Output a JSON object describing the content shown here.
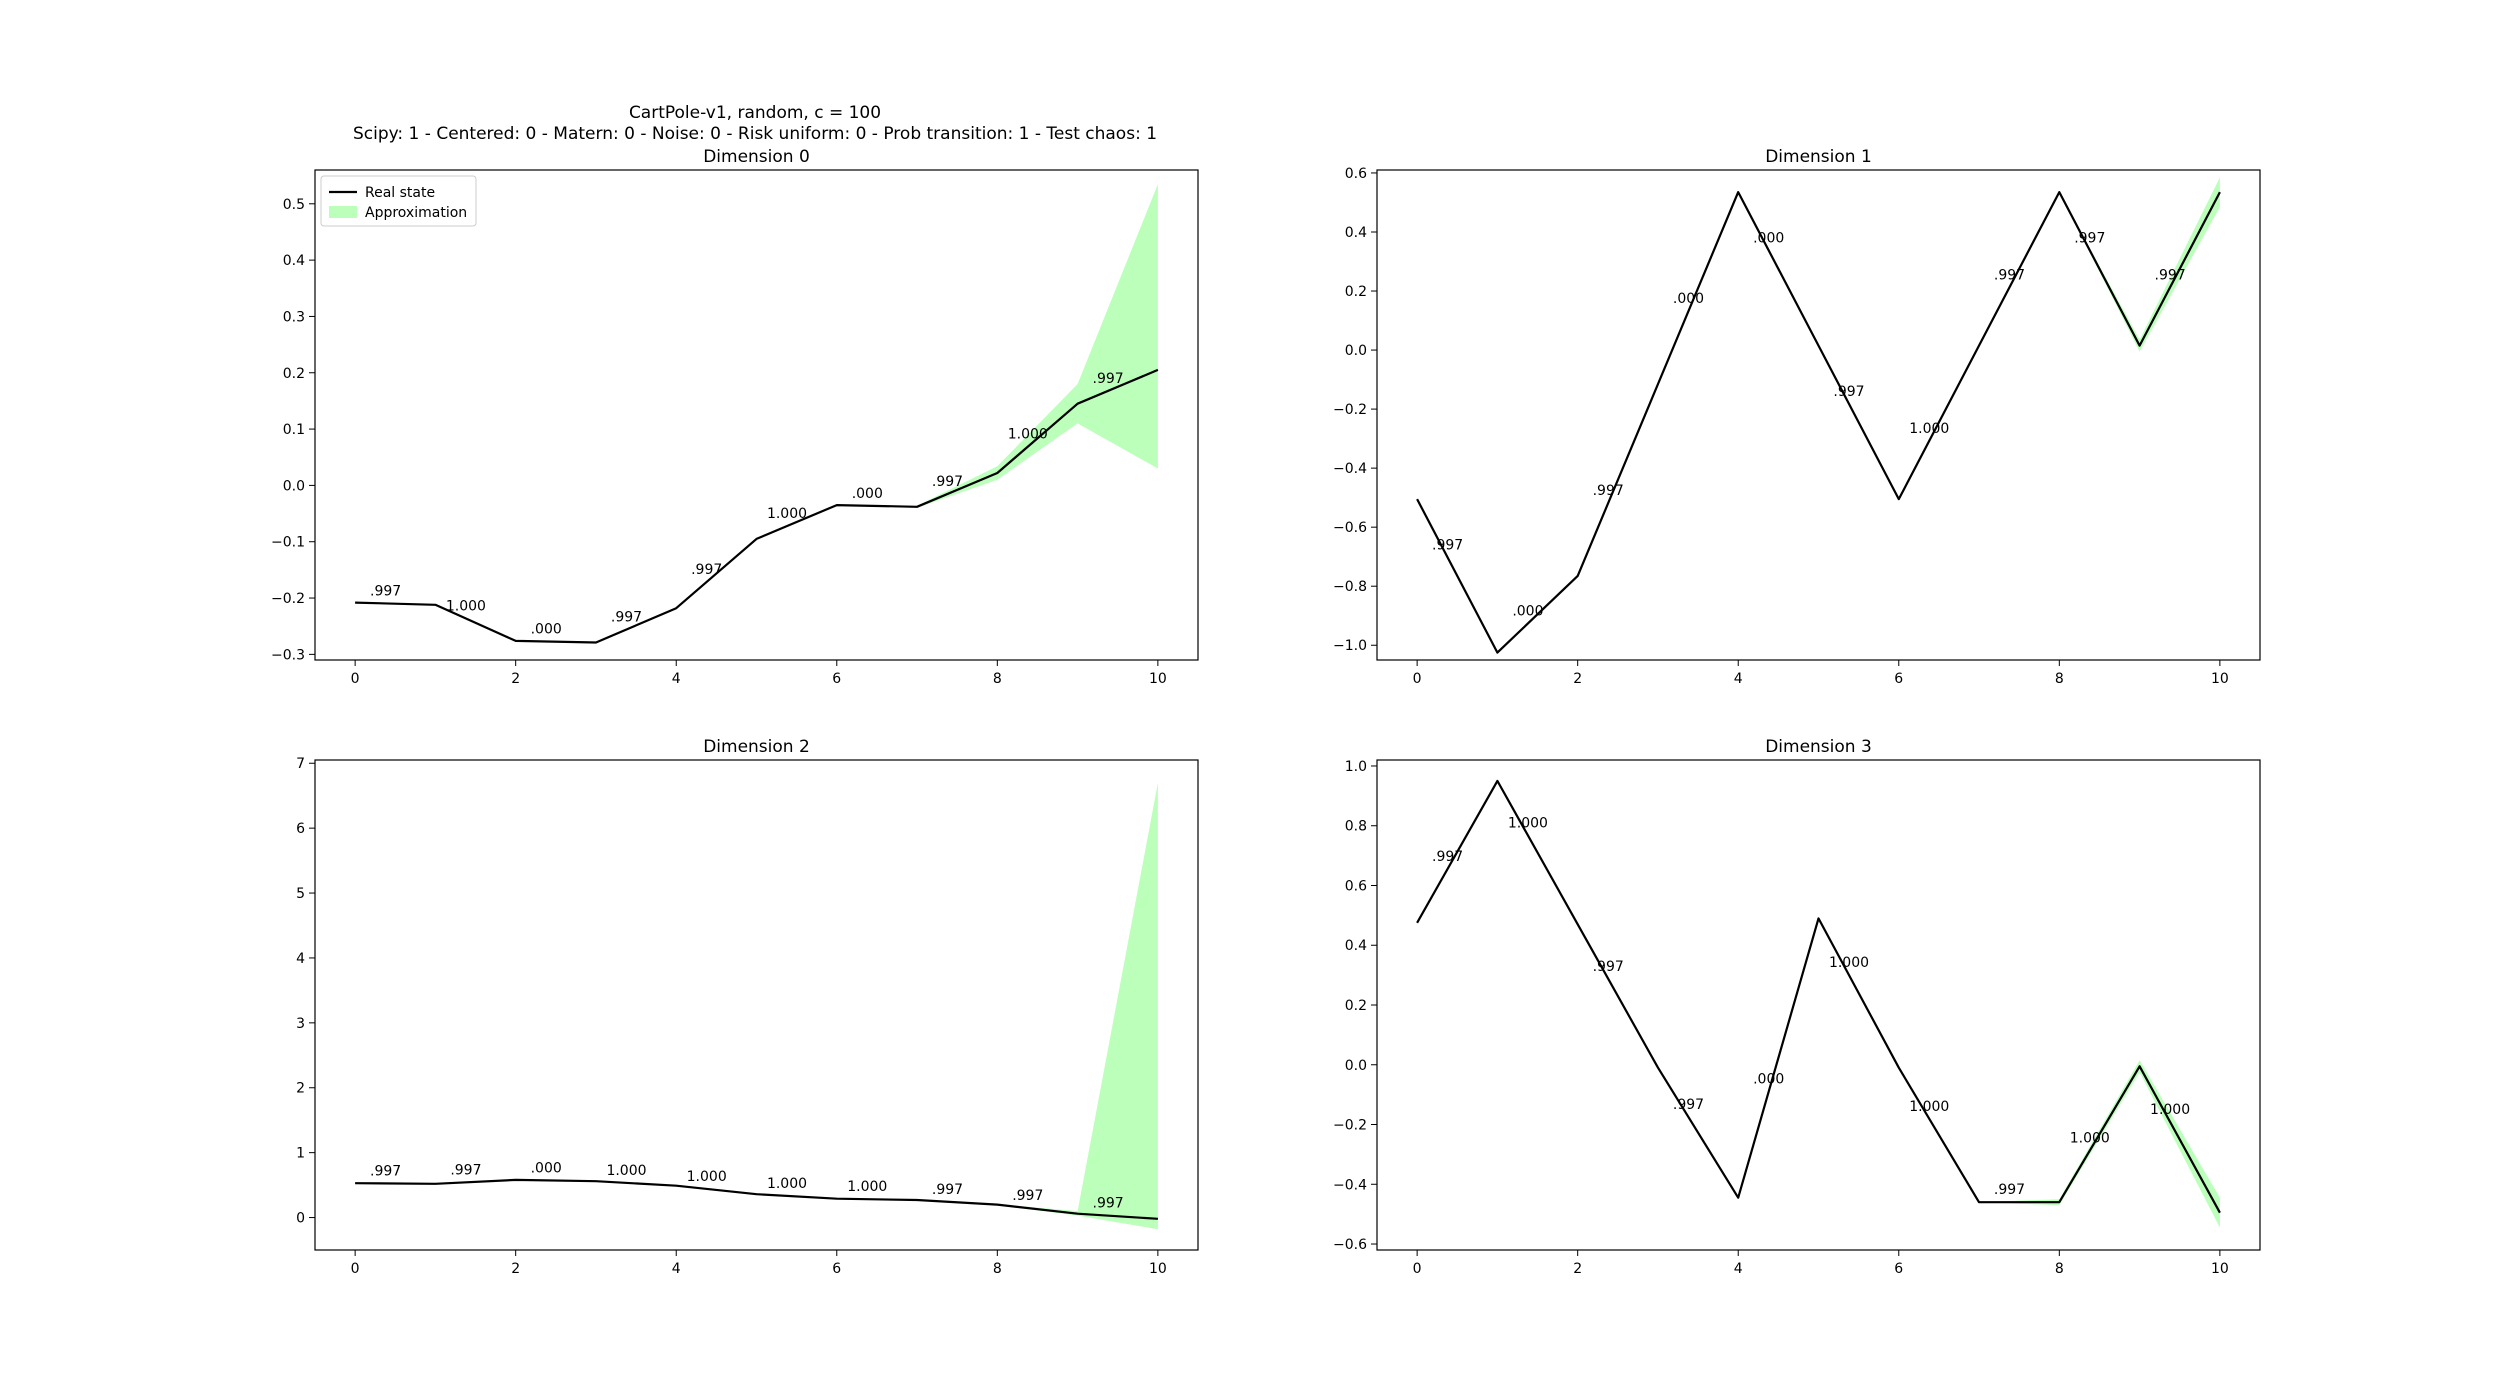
{
  "figure": {
    "suptitle_line1": "CartPole-v1, random, c = 100",
    "suptitle_line2": "Scipy: 1 - Centered: 0 - Matern: 0 - Noise: 0 - Risk uniform: 0 - Prob transition: 1 - Test chaos: 1"
  },
  "colors": {
    "real_line": "#000000",
    "band": "#bbffbb"
  },
  "legend": {
    "placement": "upper-left",
    "panel": 0,
    "items": [
      {
        "label": "Real state",
        "kind": "line"
      },
      {
        "label": "Approximation",
        "kind": "patch"
      }
    ]
  },
  "chart_data": [
    {
      "type": "line",
      "title": "Dimension 0",
      "x": [
        0,
        1,
        2,
        3,
        4,
        5,
        6,
        7,
        8,
        9,
        10
      ],
      "xlim": [
        -0.5,
        10.5
      ],
      "ylim": [
        -0.31,
        0.56
      ],
      "xticks": [
        0,
        2,
        4,
        6,
        8,
        10
      ],
      "xtick_labels": [
        "0",
        "2",
        "4",
        "6",
        "8",
        "10"
      ],
      "yticks": [
        -0.3,
        -0.2,
        -0.1,
        0.0,
        0.1,
        0.2,
        0.3,
        0.4,
        0.5
      ],
      "ytick_labels": [
        "−0.3",
        "−0.2",
        "−0.1",
        "0.0",
        "0.1",
        "0.2",
        "0.3",
        "0.4",
        "0.5"
      ],
      "grid": false,
      "series": [
        {
          "name": "Real state",
          "values": [
            -0.208,
            -0.212,
            -0.276,
            -0.279,
            -0.218,
            -0.095,
            -0.035,
            -0.038,
            0.022,
            0.145,
            0.205
          ]
        },
        {
          "name": "Approximation",
          "lower": [
            -0.208,
            -0.212,
            -0.276,
            -0.279,
            -0.218,
            -0.095,
            -0.035,
            -0.04,
            0.01,
            0.11,
            0.03
          ],
          "upper": [
            -0.208,
            -0.212,
            -0.276,
            -0.279,
            -0.218,
            -0.095,
            -0.035,
            -0.036,
            0.034,
            0.18,
            0.535
          ]
        }
      ],
      "point_labels": [
        {
          "x": 0,
          "text": ".997"
        },
        {
          "x": 1,
          "text": "1.000"
        },
        {
          "x": 2,
          "text": ".000"
        },
        {
          "x": 3,
          "text": ".997"
        },
        {
          "x": 4,
          "text": ".997"
        },
        {
          "x": 5,
          "text": "1.000"
        },
        {
          "x": 6,
          "text": ".000"
        },
        {
          "x": 7,
          "text": ".997"
        },
        {
          "x": 8,
          "text": "1.000"
        },
        {
          "x": 9,
          "text": ".997"
        }
      ]
    },
    {
      "type": "line",
      "title": "Dimension 1",
      "x": [
        0,
        1,
        2,
        3,
        4,
        5,
        6,
        7,
        8,
        9,
        10
      ],
      "xlim": [
        -0.5,
        10.5
      ],
      "ylim": [
        -1.05,
        0.61
      ],
      "xticks": [
        0,
        2,
        4,
        6,
        8,
        10
      ],
      "xtick_labels": [
        "0",
        "2",
        "4",
        "6",
        "8",
        "10"
      ],
      "yticks": [
        -1.0,
        -0.8,
        -0.6,
        -0.4,
        -0.2,
        0.0,
        0.2,
        0.4,
        0.6
      ],
      "ytick_labels": [
        "−1.0",
        "−0.8",
        "−0.6",
        "−0.4",
        "−0.2",
        "0.0",
        "0.2",
        "0.4",
        "0.6"
      ],
      "grid": false,
      "series": [
        {
          "name": "Real state",
          "values": [
            -0.505,
            -1.025,
            -0.765,
            -0.115,
            0.535,
            0.015,
            -0.505,
            0.015,
            0.535,
            0.015,
            0.535
          ]
        },
        {
          "name": "Approximation",
          "lower": [
            -0.505,
            -1.025,
            -0.765,
            -0.115,
            0.535,
            0.015,
            -0.505,
            0.015,
            0.535,
            -0.005,
            0.485
          ],
          "upper": [
            -0.505,
            -1.025,
            -0.765,
            -0.115,
            0.535,
            0.015,
            -0.505,
            0.015,
            0.535,
            0.035,
            0.585
          ]
        }
      ],
      "point_labels": [
        {
          "x": 0,
          "text": ".997"
        },
        {
          "x": 1,
          "text": ".000"
        },
        {
          "x": 2,
          "text": ".997"
        },
        {
          "x": 3,
          "text": ".000"
        },
        {
          "x": 4,
          "text": ".000"
        },
        {
          "x": 5,
          "text": ".997"
        },
        {
          "x": 6,
          "text": "1.000"
        },
        {
          "x": 7,
          "text": ".997"
        },
        {
          "x": 8,
          "text": ".997"
        },
        {
          "x": 9,
          "text": ".997"
        }
      ]
    },
    {
      "type": "line",
      "title": "Dimension 2",
      "x": [
        0,
        1,
        2,
        3,
        4,
        5,
        6,
        7,
        8,
        9,
        10
      ],
      "xlim": [
        -0.5,
        10.5
      ],
      "ylim": [
        -0.5,
        7.05
      ],
      "xticks": [
        0,
        2,
        4,
        6,
        8,
        10
      ],
      "xtick_labels": [
        "0",
        "2",
        "4",
        "6",
        "8",
        "10"
      ],
      "yticks": [
        0,
        1,
        2,
        3,
        4,
        5,
        6,
        7
      ],
      "ytick_labels": [
        "0",
        "1",
        "2",
        "3",
        "4",
        "5",
        "6",
        "7"
      ],
      "grid": false,
      "series": [
        {
          "name": "Real state",
          "values": [
            0.53,
            0.52,
            0.58,
            0.56,
            0.49,
            0.36,
            0.29,
            0.27,
            0.2,
            0.06,
            -0.02
          ]
        },
        {
          "name": "Approximation",
          "lower": [
            0.53,
            0.52,
            0.58,
            0.56,
            0.49,
            0.36,
            0.29,
            0.27,
            0.19,
            0.03,
            -0.18
          ],
          "upper": [
            0.53,
            0.52,
            0.58,
            0.56,
            0.49,
            0.36,
            0.29,
            0.27,
            0.21,
            0.1,
            6.7
          ]
        }
      ],
      "point_labels": [
        {
          "x": 0,
          "text": ".997"
        },
        {
          "x": 1,
          "text": ".997"
        },
        {
          "x": 2,
          "text": ".000"
        },
        {
          "x": 3,
          "text": "1.000"
        },
        {
          "x": 4,
          "text": "1.000"
        },
        {
          "x": 5,
          "text": "1.000"
        },
        {
          "x": 6,
          "text": "1.000"
        },
        {
          "x": 7,
          "text": ".997"
        },
        {
          "x": 8,
          "text": ".997"
        },
        {
          "x": 9,
          "text": ".997"
        }
      ]
    },
    {
      "type": "line",
      "title": "Dimension 3",
      "x": [
        0,
        1,
        2,
        3,
        4,
        5,
        6,
        7,
        8,
        9,
        10
      ],
      "xlim": [
        -0.5,
        10.5
      ],
      "ylim": [
        -0.62,
        1.02
      ],
      "xticks": [
        0,
        2,
        4,
        6,
        8,
        10
      ],
      "xtick_labels": [
        "0",
        "2",
        "4",
        "6",
        "8",
        "10"
      ],
      "yticks": [
        -0.6,
        -0.4,
        -0.2,
        0.0,
        0.2,
        0.4,
        0.6,
        0.8,
        1.0
      ],
      "ytick_labels": [
        "−0.6",
        "−0.4",
        "−0.2",
        "0.0",
        "0.2",
        "0.4",
        "0.6",
        "0.8",
        "1.0"
      ],
      "grid": false,
      "series": [
        {
          "name": "Real state",
          "values": [
            0.475,
            0.95,
            0.47,
            -0.01,
            -0.445,
            0.49,
            -0.01,
            -0.46,
            -0.46,
            -0.005,
            -0.495
          ]
        },
        {
          "name": "Approximation",
          "lower": [
            0.475,
            0.95,
            0.47,
            -0.01,
            -0.445,
            0.49,
            -0.01,
            -0.46,
            -0.47,
            -0.025,
            -0.545
          ],
          "upper": [
            0.475,
            0.95,
            0.47,
            -0.01,
            -0.445,
            0.49,
            -0.01,
            -0.46,
            -0.45,
            0.015,
            -0.445
          ]
        }
      ],
      "point_labels": [
        {
          "x": 0,
          "text": ".997"
        },
        {
          "x": 1,
          "text": "1.000"
        },
        {
          "x": 2,
          "text": ".997"
        },
        {
          "x": 3,
          "text": ".997"
        },
        {
          "x": 4,
          "text": ".000"
        },
        {
          "x": 5,
          "text": "1.000"
        },
        {
          "x": 6,
          "text": "1.000"
        },
        {
          "x": 7,
          "text": ".997"
        },
        {
          "x": 8,
          "text": "1.000"
        },
        {
          "x": 9,
          "text": "1.000"
        }
      ]
    }
  ]
}
